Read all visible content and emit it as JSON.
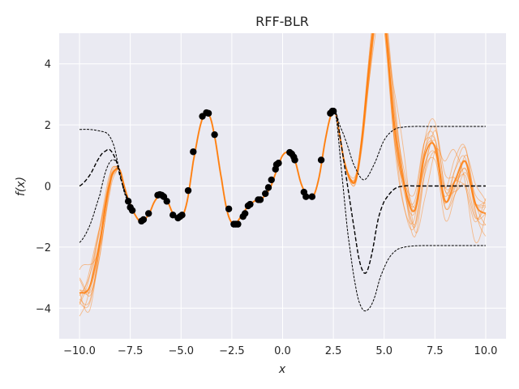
{
  "chart_data": {
    "type": "line",
    "title": "RFF-BLR",
    "xlabel": "x",
    "ylabel": "f(x)",
    "xlim": [
      -11,
      11
    ],
    "ylim": [
      -5,
      5
    ],
    "xticks": [
      -10,
      -7.5,
      -5,
      -2.5,
      0,
      2.5,
      5,
      7.5,
      10
    ],
    "xtick_labels": [
      "−10.0",
      "−7.5",
      "−5.0",
      "−2.5",
      "0.0",
      "2.5",
      "5.0",
      "7.5",
      "10.0"
    ],
    "yticks": [
      -4,
      -2,
      0,
      2,
      4
    ],
    "ytick_labels": [
      "−4",
      "−2",
      "0",
      "2",
      "4"
    ],
    "grid": true,
    "background": "#eaeaf2",
    "colors": {
      "samples": "#ff7f0e",
      "mean": "#ff7f0e",
      "prior": "#000000",
      "points": "#000000"
    },
    "observations": {
      "x": [
        -7.6,
        -7.5,
        -7.4,
        -6.95,
        -6.85,
        -6.6,
        -6.15,
        -6.05,
        -5.95,
        -5.85,
        -5.7,
        -5.4,
        -5.15,
        -5.05,
        -4.95,
        -4.65,
        -4.4,
        -3.95,
        -3.75,
        -3.65,
        -3.35,
        -2.65,
        -2.4,
        -2.3,
        -2.2,
        -1.95,
        -1.85,
        -1.7,
        -1.6,
        -1.2,
        -1.1,
        -0.85,
        -0.7,
        -0.55,
        -0.35,
        -0.3,
        -0.2,
        0.35,
        0.45,
        0.55,
        0.6,
        1.05,
        1.15,
        1.45,
        1.9,
        2.35,
        2.45,
        2.5
      ],
      "y": [
        -0.5,
        -0.7,
        -0.8,
        -1.15,
        -1.1,
        -0.9,
        -0.3,
        -0.28,
        -0.3,
        -0.35,
        -0.5,
        -0.95,
        -1.05,
        -1.0,
        -0.95,
        -0.15,
        1.12,
        2.28,
        2.4,
        2.38,
        1.68,
        -0.75,
        -1.25,
        -1.25,
        -1.25,
        -1.0,
        -0.9,
        -0.65,
        -0.6,
        -0.45,
        -0.45,
        -0.25,
        -0.05,
        0.2,
        0.55,
        0.7,
        0.75,
        1.1,
        1.05,
        0.95,
        0.85,
        -0.2,
        -0.35,
        -0.35,
        0.85,
        2.38,
        2.45,
        2.45
      ]
    },
    "fit_curve": {
      "x": [
        -10,
        -9.5,
        -9.0,
        -8.5,
        -8.2,
        -8.0,
        -7.8,
        -7.6,
        -7.3,
        -7.0,
        -6.6,
        -6.3,
        -6.0,
        -5.7,
        -5.4,
        -5.0,
        -4.7,
        -4.4,
        -4.0,
        -3.7,
        -3.4,
        -3.0,
        -2.7,
        -2.4,
        -2.1,
        -1.8,
        -1.4,
        -1.0,
        -0.6,
        -0.3,
        0.0,
        0.3,
        0.6,
        0.9,
        1.2,
        1.5,
        1.8,
        2.1,
        2.4,
        2.6,
        2.8,
        3.0,
        3.3,
        3.6,
        3.9,
        4.2,
        4.5,
        4.8,
        5.0,
        5.5,
        6.0,
        6.5,
        7.0,
        7.5,
        8.0,
        8.5,
        9.0,
        9.5,
        10.0
      ],
      "y": [
        -3.5,
        -3.3,
        -1.8,
        0.1,
        0.55,
        0.5,
        0.0,
        -0.45,
        -0.9,
        -1.15,
        -0.95,
        -0.5,
        -0.3,
        -0.45,
        -0.9,
        -1.05,
        -0.5,
        0.8,
        2.1,
        2.4,
        1.8,
        0.2,
        -0.9,
        -1.25,
        -1.05,
        -0.75,
        -0.5,
        -0.4,
        -0.05,
        0.5,
        1.0,
        1.1,
        0.85,
        0.1,
        -0.3,
        -0.35,
        0.3,
        1.5,
        2.35,
        2.4,
        1.7,
        0.9,
        0.25,
        0.2,
        1.5,
        3.5,
        5.3,
        6.5,
        5.5,
        2.0,
        0.0,
        -0.8,
        1.0,
        1.3,
        -0.5,
        0.2,
        0.8,
        -0.6,
        -0.9
      ]
    },
    "posterior_samples_count": 12,
    "prior_mean": {
      "x": [
        -10,
        -9.5,
        -9.0,
        -8.7,
        -8.5,
        -8.2,
        -8.0,
        -7.7,
        -7.5,
        2.6,
        2.9,
        3.2,
        3.5,
        3.8,
        4.1,
        4.4,
        4.7,
        5.0,
        5.5,
        6.0,
        6.5,
        7.0,
        8.0,
        9.0,
        10.0
      ],
      "y": [
        0.0,
        0.35,
        0.95,
        1.15,
        1.18,
        0.85,
        0.3,
        -0.3,
        -0.5,
        2.45,
        1.3,
        0.0,
        -1.3,
        -2.5,
        -2.85,
        -2.2,
        -1.1,
        -0.5,
        -0.1,
        0.0,
        0.0,
        0.0,
        0.0,
        0.0,
        0.0
      ]
    },
    "prior_upper": {
      "x": [
        -10,
        -9.5,
        -9.0,
        -8.6,
        -8.3,
        -8.0,
        -7.8,
        -7.6,
        2.6,
        2.8,
        3.1,
        3.5,
        4.0,
        4.5,
        5.0,
        5.5,
        6.0,
        6.5,
        7.0,
        8.0,
        9.0,
        10.0
      ],
      "y": [
        1.85,
        1.85,
        1.8,
        1.7,
        1.3,
        0.4,
        -0.2,
        -0.5,
        2.45,
        2.0,
        1.5,
        0.7,
        0.2,
        0.7,
        1.5,
        1.85,
        1.93,
        1.95,
        1.95,
        1.95,
        1.95,
        1.95
      ]
    },
    "prior_lower": {
      "x": [
        -10,
        -9.5,
        -9.0,
        -8.7,
        -8.4,
        -8.1,
        -7.9,
        -7.6,
        2.6,
        2.9,
        3.2,
        3.6,
        3.9,
        4.2,
        4.5,
        4.8,
        5.2,
        5.6,
        6.0,
        6.5,
        7.0,
        8.0,
        9.0,
        10.0
      ],
      "y": [
        -1.85,
        -1.3,
        -0.3,
        0.5,
        0.85,
        0.7,
        0.1,
        -0.5,
        2.4,
        0.5,
        -1.5,
        -3.3,
        -4.0,
        -4.05,
        -3.7,
        -3.0,
        -2.4,
        -2.1,
        -2.0,
        -1.96,
        -1.95,
        -1.95,
        -1.95,
        -1.95
      ]
    }
  }
}
